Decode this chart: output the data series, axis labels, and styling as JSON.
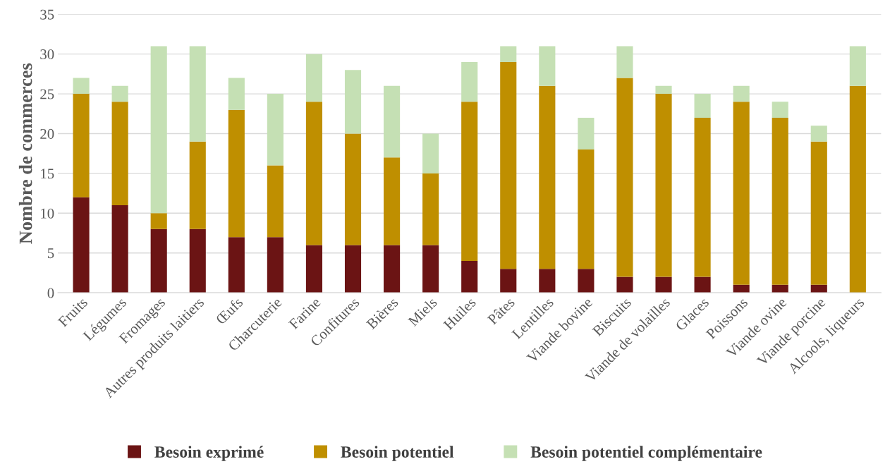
{
  "chart_data": {
    "type": "bar",
    "stacked": true,
    "ylabel": "Nombre de commerces",
    "categories": [
      "Fruits",
      "Légumes",
      "Fromages",
      "Autres produits laitiers",
      "Œufs",
      "Charcuterie",
      "Farine",
      "Confitures",
      "Bières",
      "Miels",
      "Huiles",
      "Pâtes",
      "Lentilles",
      "Viande bovine",
      "Biscuits",
      "Viande de volailles",
      "Glaces",
      "Poissons",
      "Viande ovine",
      "Viande porcine",
      "Alcools, liqueurs"
    ],
    "series": [
      {
        "name": "Besoin exprimé",
        "color": "#6b1414",
        "values": [
          12,
          11,
          8,
          8,
          7,
          7,
          6,
          6,
          6,
          6,
          4,
          3,
          3,
          3,
          2,
          2,
          2,
          1,
          1,
          1,
          0
        ]
      },
      {
        "name": "Besoin potentiel",
        "color": "#bf8f00",
        "values": [
          13,
          13,
          2,
          11,
          16,
          9,
          18,
          14,
          11,
          9,
          20,
          26,
          23,
          15,
          25,
          23,
          20,
          23,
          21,
          18,
          26
        ]
      },
      {
        "name": "Besoin potentiel complémentaire",
        "color": "#c5e0b4",
        "values": [
          2,
          2,
          21,
          12,
          4,
          9,
          6,
          8,
          9,
          5,
          5,
          2,
          5,
          4,
          4,
          1,
          3,
          2,
          2,
          2,
          5
        ]
      }
    ],
    "ylim": [
      0,
      35
    ],
    "yticks": [
      0,
      5,
      10,
      15,
      20,
      25,
      30,
      35
    ],
    "grid": "y",
    "legend": "bottom"
  }
}
